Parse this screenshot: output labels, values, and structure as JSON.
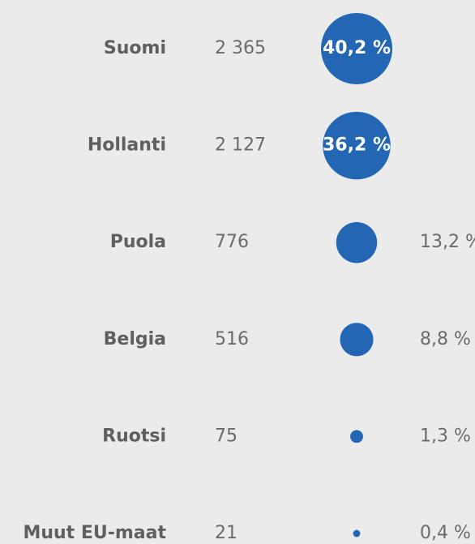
{
  "chart_data": {
    "type": "bubble",
    "categories": [
      "Suomi",
      "Hollanti",
      "Puola",
      "Belgia",
      "Ruotsi",
      "Muut EU-maat"
    ],
    "values": [
      2365,
      2127,
      776,
      516,
      75,
      21
    ],
    "value_labels": [
      "2 365",
      "2 127",
      "776",
      "516",
      "75",
      "21"
    ],
    "sizes": [
      40.2,
      36.2,
      13.2,
      8.8,
      1.3,
      0.4
    ],
    "size_labels": [
      "40,2 %",
      "36,2 %",
      "13,2 %",
      "8,8 %",
      "1,3 %",
      "0,4 %"
    ],
    "color": "#2366b4"
  }
}
